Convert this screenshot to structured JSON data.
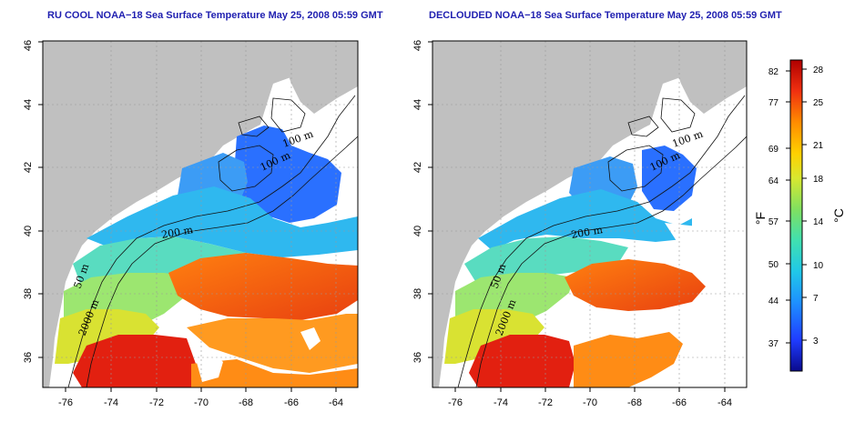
{
  "titles": {
    "left": "RU COOL NOAA−18 Sea Surface Temperature May 25, 2008 05:59 GMT",
    "right": "DECLOUDED NOAA−18 Sea Surface Temperature May 25, 2008 05:59 GMT"
  },
  "axes": {
    "lon_ticks": [
      "-76",
      "-74",
      "-72",
      "-70",
      "-68",
      "-66",
      "-64"
    ],
    "lat_ticks": [
      "36",
      "38",
      "40",
      "42",
      "44",
      "46"
    ]
  },
  "contour_labels": [
    "100 m",
    "100 m",
    "200 m",
    "50 m",
    "2000 m"
  ],
  "colorbar": {
    "fahrenheit_label": "°F",
    "celsius_label": "°C",
    "fahrenheit_ticks": [
      "82",
      "77",
      "69",
      "64",
      "57",
      "50",
      "44",
      "37"
    ],
    "celsius_ticks": [
      "28",
      "25",
      "21",
      "18",
      "14",
      "10",
      "7",
      "3"
    ],
    "colors": [
      "#0a0a8c",
      "#1f3cff",
      "#1e90ff",
      "#20c8e8",
      "#40e0b0",
      "#80e060",
      "#d8e830",
      "#ffd000",
      "#ff8c00",
      "#f03010",
      "#b00000"
    ]
  },
  "map_colors": {
    "land": "#c0c0c0",
    "cloud": "#ffffff",
    "cold": "#1f5fff",
    "cool": "#30b8f0",
    "mid": "#60e0b0",
    "warm": "#d8e030",
    "orange": "#ff7010",
    "hot": "#e02010"
  }
}
